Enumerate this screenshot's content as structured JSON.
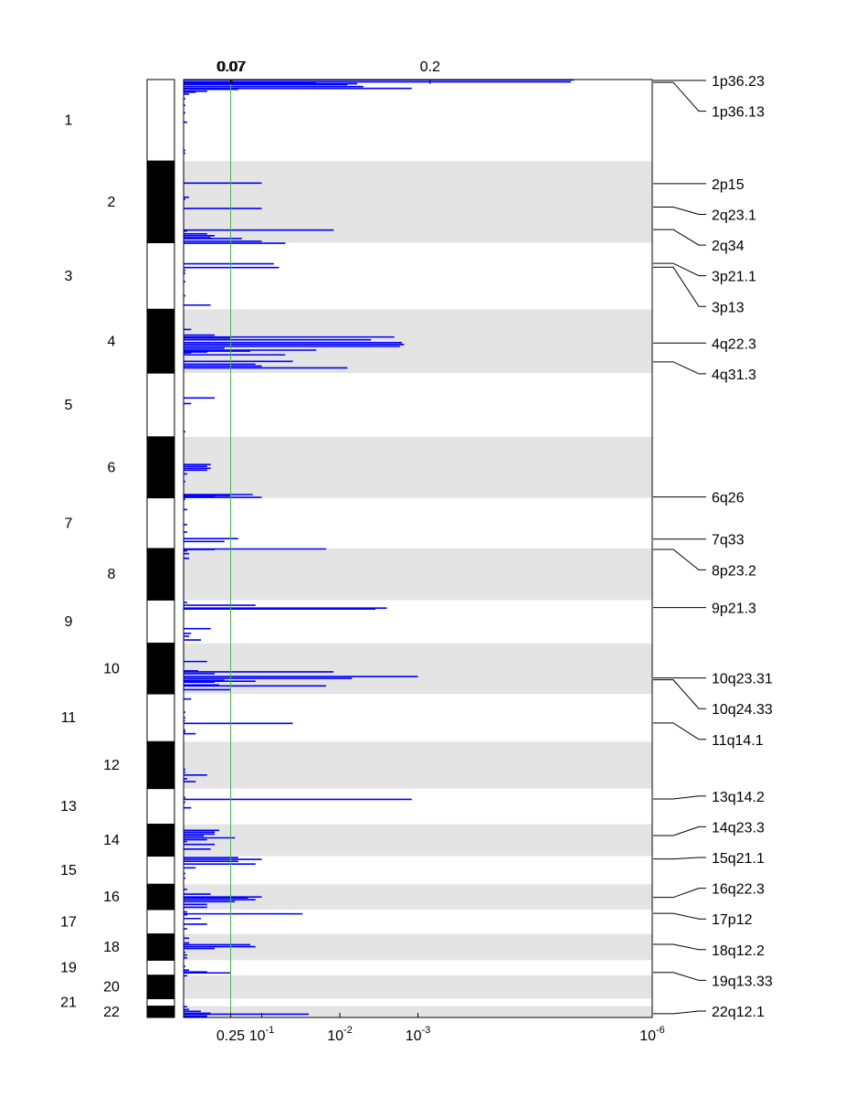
{
  "chart_data": {
    "type": "bar",
    "orientation": "horizontal",
    "description_note": "GISTIC-style genome plot: q-values per chromosome region on log scale",
    "x_scale": "log_q_reversed",
    "x_bottom_ticks": [
      {
        "label": "0.25",
        "q": 0.25
      },
      {
        "label": "10",
        "sup": "-1",
        "q": 0.1
      },
      {
        "label": "10",
        "sup": "-2",
        "q": 0.01
      },
      {
        "label": "10",
        "sup": "-3",
        "q": 0.001
      },
      {
        "label": "10",
        "sup": "-6",
        "q": 1e-06
      }
    ],
    "x_top_ticks": [
      {
        "label": "0.07",
        "q": 0.25
      },
      {
        "label": "0.07",
        "q": 0.24
      },
      {
        "label": "0.2",
        "q": 0.0007
      }
    ],
    "threshold": {
      "q": 0.25,
      "color": "#4caf50"
    },
    "series_color": "#0000ff",
    "band_shade": "#e4e4e4",
    "chromosomes": [
      {
        "label": "1",
        "start": 0.0,
        "end": 0.087
      },
      {
        "label": "2",
        "start": 0.087,
        "end": 0.174
      },
      {
        "label": "3",
        "start": 0.174,
        "end": 0.245
      },
      {
        "label": "4",
        "start": 0.245,
        "end": 0.313
      },
      {
        "label": "5",
        "start": 0.313,
        "end": 0.381
      },
      {
        "label": "6",
        "start": 0.381,
        "end": 0.446
      },
      {
        "label": "7",
        "start": 0.446,
        "end": 0.5
      },
      {
        "label": "8",
        "start": 0.5,
        "end": 0.555
      },
      {
        "label": "9",
        "start": 0.555,
        "end": 0.601
      },
      {
        "label": "10",
        "start": 0.601,
        "end": 0.655
      },
      {
        "label": "11",
        "start": 0.655,
        "end": 0.706
      },
      {
        "label": "12",
        "start": 0.706,
        "end": 0.756
      },
      {
        "label": "13",
        "start": 0.756,
        "end": 0.794
      },
      {
        "label": "14",
        "start": 0.794,
        "end": 0.828
      },
      {
        "label": "15",
        "start": 0.828,
        "end": 0.858
      },
      {
        "label": "16",
        "start": 0.858,
        "end": 0.885
      },
      {
        "label": "17",
        "start": 0.885,
        "end": 0.911
      },
      {
        "label": "18",
        "start": 0.911,
        "end": 0.939
      },
      {
        "label": "19",
        "start": 0.939,
        "end": 0.955
      },
      {
        "label": "20",
        "start": 0.955,
        "end": 0.98
      },
      {
        "label": "21",
        "start": 0.98,
        "end": 0.988
      },
      {
        "label": "22",
        "start": 0.988,
        "end": 1.0
      }
    ],
    "peaks": [
      {
        "label": "1p36.23",
        "pos": 0.001
      },
      {
        "label": "1p36.13",
        "pos": 0.003
      },
      {
        "label": "2p15",
        "pos": 0.111
      },
      {
        "label": "2q23.1",
        "pos": 0.136
      },
      {
        "label": "2q34",
        "pos": 0.16
      },
      {
        "label": "3p21.1",
        "pos": 0.196
      },
      {
        "label": "3p13",
        "pos": 0.2
      },
      {
        "label": "4q22.3",
        "pos": 0.281
      },
      {
        "label": "4q31.3",
        "pos": 0.301
      },
      {
        "label": "6q26",
        "pos": 0.445
      },
      {
        "label": "7q33",
        "pos": 0.49
      },
      {
        "label": "8p23.2",
        "pos": 0.501
      },
      {
        "label": "9p21.3",
        "pos": 0.563
      },
      {
        "label": "10q23.31",
        "pos": 0.638
      },
      {
        "label": "10q24.33",
        "pos": 0.64
      },
      {
        "label": "11q14.1",
        "pos": 0.686
      },
      {
        "label": "13q14.2",
        "pos": 0.767
      },
      {
        "label": "14q23.3",
        "pos": 0.806
      },
      {
        "label": "15q21.1",
        "pos": 0.831
      },
      {
        "label": "16q22.3",
        "pos": 0.872
      },
      {
        "label": "17p12",
        "pos": 0.889
      },
      {
        "label": "18q12.2",
        "pos": 0.922
      },
      {
        "label": "19q13.33",
        "pos": 0.952
      },
      {
        "label": "22q12.1",
        "pos": 0.996
      }
    ],
    "bars": [
      {
        "pos": 0.0,
        "q": 1e-05
      },
      {
        "pos": 0.002,
        "q": 1.1e-05
      },
      {
        "pos": 0.003,
        "q": 0.02
      },
      {
        "pos": 0.004,
        "q": 0.006
      },
      {
        "pos": 0.005,
        "q": 0.008
      },
      {
        "pos": 0.007,
        "q": 0.005
      },
      {
        "pos": 0.009,
        "q": 0.0012
      },
      {
        "pos": 0.01,
        "q": 0.2
      },
      {
        "pos": 0.012,
        "q": 0.5
      },
      {
        "pos": 0.013,
        "q": 0.7
      },
      {
        "pos": 0.015,
        "q": 0.85
      },
      {
        "pos": 0.02,
        "q": 0.95
      },
      {
        "pos": 0.027,
        "q": 0.95
      },
      {
        "pos": 0.035,
        "q": 0.95
      },
      {
        "pos": 0.045,
        "q": 0.9
      },
      {
        "pos": 0.075,
        "q": 0.95
      },
      {
        "pos": 0.078,
        "q": 0.95
      },
      {
        "pos": 0.11,
        "q": 0.1
      },
      {
        "pos": 0.125,
        "q": 0.85
      },
      {
        "pos": 0.127,
        "q": 0.95
      },
      {
        "pos": 0.137,
        "q": 0.1
      },
      {
        "pos": 0.16,
        "q": 0.012
      },
      {
        "pos": 0.161,
        "q": 0.9
      },
      {
        "pos": 0.164,
        "q": 0.5
      },
      {
        "pos": 0.166,
        "q": 0.4
      },
      {
        "pos": 0.168,
        "q": 0.45
      },
      {
        "pos": 0.169,
        "q": 0.18
      },
      {
        "pos": 0.172,
        "q": 0.1
      },
      {
        "pos": 0.174,
        "q": 0.05
      },
      {
        "pos": 0.196,
        "q": 0.07
      },
      {
        "pos": 0.2,
        "q": 0.06
      },
      {
        "pos": 0.203,
        "q": 0.95
      },
      {
        "pos": 0.206,
        "q": 0.95
      },
      {
        "pos": 0.215,
        "q": 0.95
      },
      {
        "pos": 0.23,
        "q": 0.95
      },
      {
        "pos": 0.24,
        "q": 0.45
      },
      {
        "pos": 0.266,
        "q": 0.8
      },
      {
        "pos": 0.272,
        "q": 0.4
      },
      {
        "pos": 0.274,
        "q": 0.002
      },
      {
        "pos": 0.275,
        "q": 0.25
      },
      {
        "pos": 0.277,
        "q": 0.004
      },
      {
        "pos": 0.28,
        "q": 0.0016
      },
      {
        "pos": 0.282,
        "q": 0.0015
      },
      {
        "pos": 0.284,
        "q": 0.0017
      },
      {
        "pos": 0.286,
        "q": 0.3
      },
      {
        "pos": 0.288,
        "q": 0.02
      },
      {
        "pos": 0.289,
        "q": 0.14
      },
      {
        "pos": 0.29,
        "q": 0.5
      },
      {
        "pos": 0.291,
        "q": 0.8
      },
      {
        "pos": 0.293,
        "q": 0.05
      },
      {
        "pos": 0.3,
        "q": 0.04
      },
      {
        "pos": 0.303,
        "q": 0.12
      },
      {
        "pos": 0.305,
        "q": 0.1
      },
      {
        "pos": 0.307,
        "q": 0.008
      },
      {
        "pos": 0.339,
        "q": 0.4
      },
      {
        "pos": 0.345,
        "q": 0.8
      },
      {
        "pos": 0.375,
        "q": 0.95
      },
      {
        "pos": 0.41,
        "q": 0.45
      },
      {
        "pos": 0.412,
        "q": 0.5
      },
      {
        "pos": 0.414,
        "q": 0.45
      },
      {
        "pos": 0.416,
        "q": 0.5
      },
      {
        "pos": 0.42,
        "q": 0.9
      },
      {
        "pos": 0.428,
        "q": 0.95
      },
      {
        "pos": 0.442,
        "q": 0.13
      },
      {
        "pos": 0.443,
        "q": 0.25
      },
      {
        "pos": 0.444,
        "q": 0.4
      },
      {
        "pos": 0.445,
        "q": 0.1
      },
      {
        "pos": 0.447,
        "q": 0.95
      },
      {
        "pos": 0.458,
        "q": 0.9
      },
      {
        "pos": 0.474,
        "q": 0.9
      },
      {
        "pos": 0.482,
        "q": 0.9
      },
      {
        "pos": 0.489,
        "q": 0.2
      },
      {
        "pos": 0.492,
        "q": 0.3
      },
      {
        "pos": 0.5,
        "q": 0.015
      },
      {
        "pos": 0.5005,
        "q": 0.4
      },
      {
        "pos": 0.502,
        "q": 0.9
      },
      {
        "pos": 0.505,
        "q": 0.85
      },
      {
        "pos": 0.51,
        "q": 0.85
      },
      {
        "pos": 0.557,
        "q": 0.9
      },
      {
        "pos": 0.56,
        "q": 0.12
      },
      {
        "pos": 0.563,
        "q": 0.0025
      },
      {
        "pos": 0.564,
        "q": 0.0035
      },
      {
        "pos": 0.585,
        "q": 0.45
      },
      {
        "pos": 0.59,
        "q": 0.8
      },
      {
        "pos": 0.593,
        "q": 0.85
      },
      {
        "pos": 0.597,
        "q": 0.6
      },
      {
        "pos": 0.62,
        "q": 0.5
      },
      {
        "pos": 0.63,
        "q": 0.65
      },
      {
        "pos": 0.631,
        "q": 0.012
      },
      {
        "pos": 0.633,
        "q": 0.4
      },
      {
        "pos": 0.636,
        "q": 0.001
      },
      {
        "pos": 0.638,
        "q": 0.007
      },
      {
        "pos": 0.64,
        "q": 0.3
      },
      {
        "pos": 0.641,
        "q": 0.12
      },
      {
        "pos": 0.642,
        "q": 0.4
      },
      {
        "pos": 0.645,
        "q": 0.35
      },
      {
        "pos": 0.646,
        "q": 0.015
      },
      {
        "pos": 0.65,
        "q": 0.25
      },
      {
        "pos": 0.66,
        "q": 0.8
      },
      {
        "pos": 0.674,
        "q": 0.95
      },
      {
        "pos": 0.68,
        "q": 0.95
      },
      {
        "pos": 0.683,
        "q": 0.96
      },
      {
        "pos": 0.686,
        "q": 0.04
      },
      {
        "pos": 0.693,
        "q": 0.95
      },
      {
        "pos": 0.695,
        "q": 0.95
      },
      {
        "pos": 0.697,
        "q": 0.7
      },
      {
        "pos": 0.735,
        "q": 0.95
      },
      {
        "pos": 0.738,
        "q": 0.95
      },
      {
        "pos": 0.741,
        "q": 0.5
      },
      {
        "pos": 0.745,
        "q": 0.9
      },
      {
        "pos": 0.748,
        "q": 0.7
      },
      {
        "pos": 0.765,
        "q": 0.95
      },
      {
        "pos": 0.767,
        "q": 0.0012
      },
      {
        "pos": 0.77,
        "q": 0.95
      },
      {
        "pos": 0.776,
        "q": 0.8
      },
      {
        "pos": 0.8,
        "q": 0.35
      },
      {
        "pos": 0.802,
        "q": 0.4
      },
      {
        "pos": 0.804,
        "q": 0.4
      },
      {
        "pos": 0.806,
        "q": 0.55
      },
      {
        "pos": 0.808,
        "q": 0.22
      },
      {
        "pos": 0.81,
        "q": 0.5
      },
      {
        "pos": 0.812,
        "q": 0.9
      },
      {
        "pos": 0.815,
        "q": 0.4
      },
      {
        "pos": 0.82,
        "q": 0.45
      },
      {
        "pos": 0.829,
        "q": 0.2
      },
      {
        "pos": 0.831,
        "q": 0.1
      },
      {
        "pos": 0.833,
        "q": 0.2
      },
      {
        "pos": 0.836,
        "q": 0.12
      },
      {
        "pos": 0.84,
        "q": 0.7
      },
      {
        "pos": 0.846,
        "q": 0.95
      },
      {
        "pos": 0.851,
        "q": 0.95
      },
      {
        "pos": 0.863,
        "q": 0.9
      },
      {
        "pos": 0.868,
        "q": 0.45
      },
      {
        "pos": 0.871,
        "q": 0.1
      },
      {
        "pos": 0.872,
        "q": 0.15
      },
      {
        "pos": 0.874,
        "q": 0.12
      },
      {
        "pos": 0.876,
        "q": 0.22
      },
      {
        "pos": 0.879,
        "q": 0.5
      },
      {
        "pos": 0.882,
        "q": 0.5
      },
      {
        "pos": 0.887,
        "q": 0.9
      },
      {
        "pos": 0.889,
        "q": 0.03
      },
      {
        "pos": 0.89,
        "q": 0.9
      },
      {
        "pos": 0.894,
        "q": 0.6
      },
      {
        "pos": 0.9,
        "q": 0.5
      },
      {
        "pos": 0.905,
        "q": 0.9
      },
      {
        "pos": 0.915,
        "q": 0.85
      },
      {
        "pos": 0.92,
        "q": 0.85
      },
      {
        "pos": 0.922,
        "q": 0.14
      },
      {
        "pos": 0.924,
        "q": 0.12
      },
      {
        "pos": 0.926,
        "q": 0.4
      },
      {
        "pos": 0.93,
        "q": 0.95
      },
      {
        "pos": 0.933,
        "q": 0.9
      },
      {
        "pos": 0.936,
        "q": 0.9
      },
      {
        "pos": 0.945,
        "q": 0.95
      },
      {
        "pos": 0.949,
        "q": 0.85
      },
      {
        "pos": 0.951,
        "q": 0.5
      },
      {
        "pos": 0.952,
        "q": 0.25
      },
      {
        "pos": 0.955,
        "q": 0.9
      },
      {
        "pos": 0.988,
        "q": 0.9
      },
      {
        "pos": 0.991,
        "q": 0.85
      },
      {
        "pos": 0.993,
        "q": 0.6
      },
      {
        "pos": 0.995,
        "q": 0.45
      },
      {
        "pos": 0.996,
        "q": 0.025
      },
      {
        "pos": 0.998,
        "q": 0.5
      },
      {
        "pos": 0.999,
        "q": 0.5
      }
    ]
  }
}
